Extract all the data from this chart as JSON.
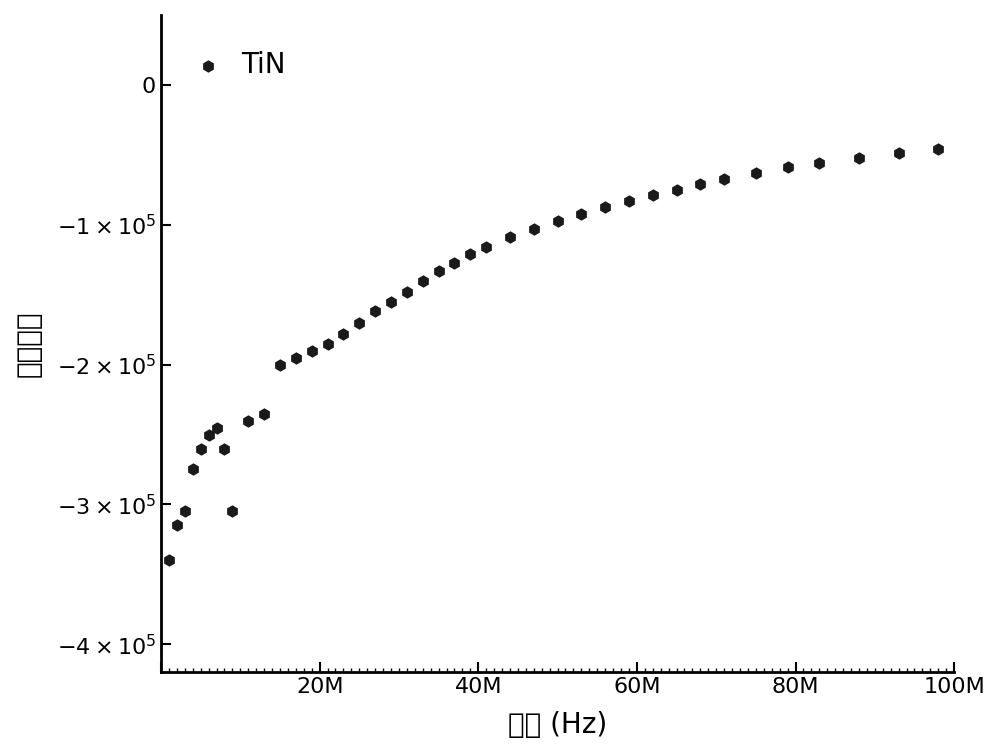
{
  "x_data": [
    1000000,
    2000000,
    3000000,
    4000000,
    5000000,
    6000000,
    7000000,
    8000000,
    9000000,
    11000000,
    13000000,
    15000000,
    17000000,
    19000000,
    21000000,
    23000000,
    25000000,
    27000000,
    29000000,
    31000000,
    33000000,
    35000000,
    37000000,
    39000000,
    41000000,
    44000000,
    47000000,
    50000000,
    53000000,
    56000000,
    59000000,
    62000000,
    65000000,
    68000000,
    71000000,
    75000000,
    79000000,
    83000000,
    88000000,
    93000000,
    98000000
  ],
  "y_data": [
    -340000,
    -315000,
    -305000,
    -275000,
    -260000,
    -250000,
    -245000,
    -260000,
    -305000,
    -240000,
    -235000,
    -200000,
    -195000,
    -190000,
    -185000,
    -178000,
    -170000,
    -162000,
    -155000,
    -148000,
    -140000,
    -133000,
    -127000,
    -121000,
    -116000,
    -109000,
    -103000,
    -97000,
    -92000,
    -87000,
    -83000,
    -79000,
    -75000,
    -71000,
    -67000,
    -63000,
    -59000,
    -56000,
    -52000,
    -49000,
    -46000
  ],
  "legend_label": "TiN",
  "xlabel": "频率 (Hz)",
  "ylabel": "介电常数",
  "xlim": [
    0,
    100000000
  ],
  "ylim": [
    -420000,
    50000
  ],
  "yticks": [
    0,
    -100000,
    -200000,
    -300000,
    -400000
  ],
  "ytick_labels": [
    "0",
    "$-1\\times10^{5}$",
    "$-2\\times10^{5}$",
    "$-3\\times10^{5}$",
    "$-4\\times10^{5}$"
  ],
  "xtick_positions": [
    0,
    20000000,
    40000000,
    60000000,
    80000000,
    100000000
  ],
  "xtick_labels": [
    "",
    "20M",
    "40M",
    "60M",
    "80M",
    "100M"
  ],
  "background_color": "#ffffff",
  "marker_color": "#1a1a1a",
  "marker": "h",
  "marker_size": 80,
  "axis_linewidth": 2.0,
  "tick_fontsize": 16,
  "label_fontsize": 20,
  "legend_fontsize": 20
}
